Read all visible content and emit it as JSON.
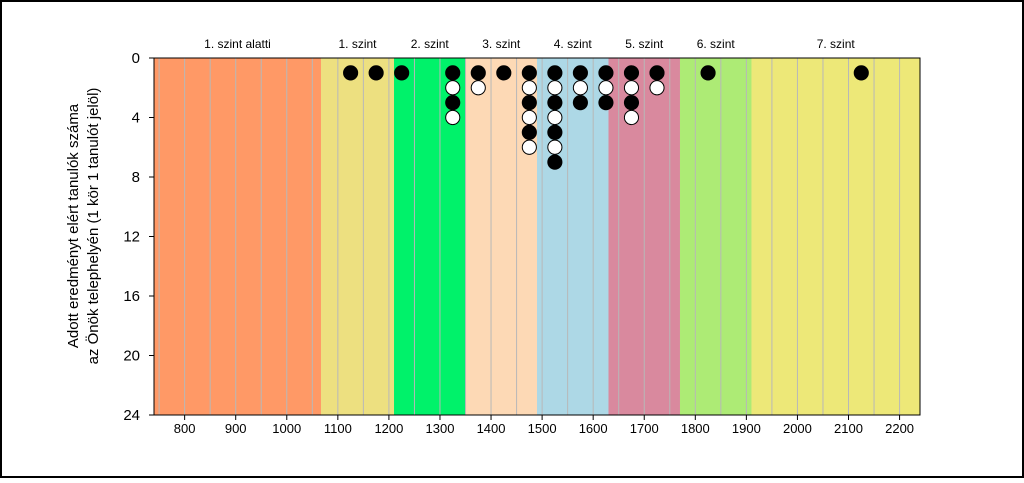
{
  "chart_data": {
    "type": "scatter",
    "title": "",
    "xlabel": "",
    "ylabel_line1": "Adott eredményt elért tanulók száma",
    "ylabel_line2": "az Önök telephelyén (1 kör 1 tanulót jelöl)",
    "xlim": [
      740,
      2240
    ],
    "ylim": [
      0,
      24
    ],
    "y_inverted": true,
    "grid": "vertical",
    "x_ticks": [
      800,
      900,
      1000,
      1100,
      1200,
      1300,
      1400,
      1500,
      1600,
      1700,
      1800,
      1900,
      2000,
      2100,
      2200
    ],
    "y_ticks": [
      0,
      4,
      8,
      12,
      16,
      20,
      24
    ],
    "bands": [
      {
        "label": "1. szint alatti",
        "from": 740,
        "to": 1067,
        "color": "#FF9966"
      },
      {
        "label": "1. szint",
        "from": 1067,
        "to": 1210,
        "color": "#EDE080"
      },
      {
        "label": "2. szint",
        "from": 1210,
        "to": 1350,
        "color": "#00F26A"
      },
      {
        "label": "3. szint",
        "from": 1350,
        "to": 1490,
        "color": "#FDD9B5"
      },
      {
        "label": "4. szint",
        "from": 1490,
        "to": 1630,
        "color": "#ADD8E6"
      },
      {
        "label": "5. szint",
        "from": 1630,
        "to": 1770,
        "color": "#D9899E"
      },
      {
        "label": "6. szint",
        "from": 1770,
        "to": 1910,
        "color": "#ADEB75"
      },
      {
        "label": "7. szint",
        "from": 1910,
        "to": 2240,
        "color": "#EDE878"
      }
    ],
    "columns": [
      {
        "x": 1125,
        "count": 1
      },
      {
        "x": 1175,
        "count": 1
      },
      {
        "x": 1225,
        "count": 1
      },
      {
        "x": 1325,
        "count": 4
      },
      {
        "x": 1375,
        "count": 2
      },
      {
        "x": 1425,
        "count": 1
      },
      {
        "x": 1475,
        "count": 6
      },
      {
        "x": 1525,
        "count": 7
      },
      {
        "x": 1575,
        "count": 3
      },
      {
        "x": 1625,
        "count": 3
      },
      {
        "x": 1675,
        "count": 4
      },
      {
        "x": 1725,
        "count": 2
      },
      {
        "x": 1825,
        "count": 1
      },
      {
        "x": 2125,
        "count": 1
      }
    ],
    "colors": {
      "filled": "#000000",
      "empty": "#ffffff",
      "outline": "#000000"
    }
  }
}
